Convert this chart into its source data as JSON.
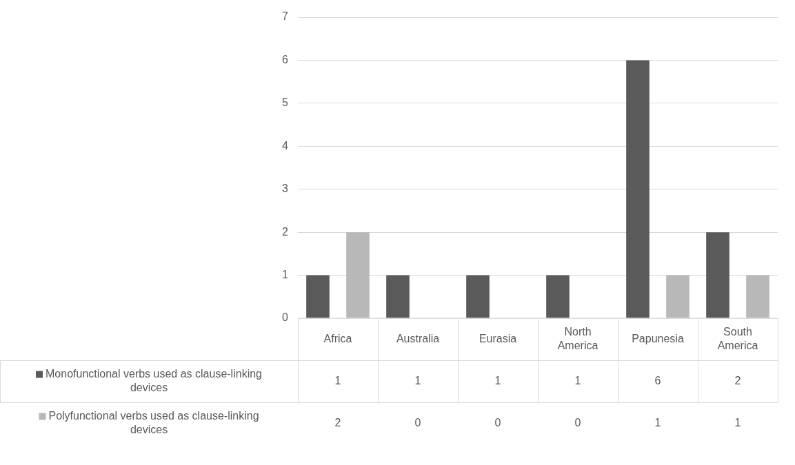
{
  "chart_data": {
    "type": "bar",
    "categories": [
      "Africa",
      "Australia",
      "Eurasia",
      "North America",
      "Papunesia",
      "South America"
    ],
    "series": [
      {
        "name": "Monofunctional verbs used as clause-linking devices",
        "color": "#5a5a5a",
        "values": [
          1,
          1,
          1,
          1,
          6,
          2
        ]
      },
      {
        "name": "Polyfunctional verbs used as clause-linking devices",
        "color": "#b8b8b8",
        "values": [
          2,
          0,
          0,
          0,
          1,
          1
        ]
      }
    ],
    "ylim": [
      0,
      7
    ],
    "yticks": [
      0,
      1,
      2,
      3,
      4,
      5,
      6,
      7
    ],
    "grid": "y",
    "data_labels": true,
    "legend": "bottom left"
  }
}
